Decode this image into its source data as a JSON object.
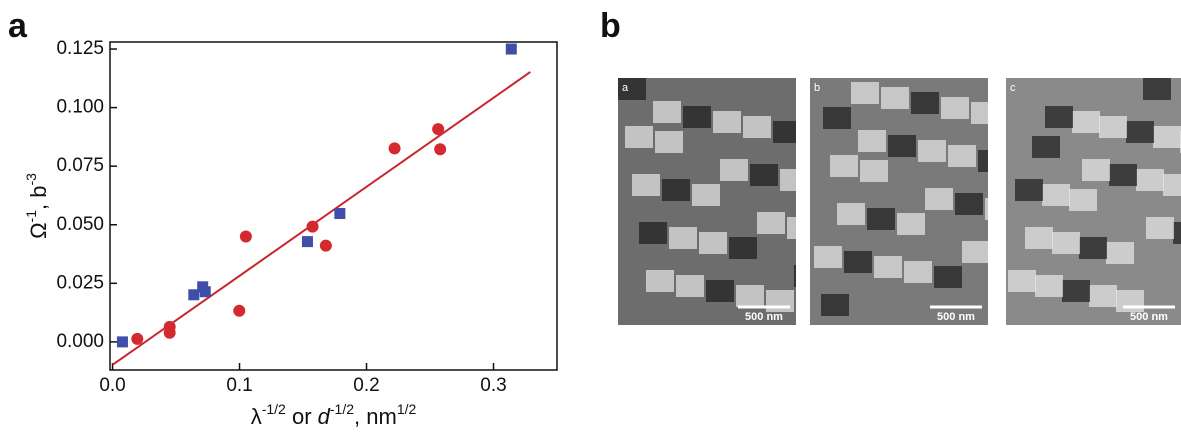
{
  "panel_labels": [
    "a",
    "b"
  ],
  "chart_data": {
    "type": "scatter",
    "x_label": [
      {
        "text": "λ"
      },
      {
        "text": "-1/2",
        "sup": true
      },
      {
        "text": " or "
      },
      {
        "text": "d",
        "italic": true
      },
      {
        "text": "-1/2",
        "sup": true
      },
      {
        "text": ", nm"
      },
      {
        "text": "1/2",
        "sup": true
      }
    ],
    "y_label": [
      {
        "text": "Ω"
      },
      {
        "text": "-1",
        "sup": true
      },
      {
        "text": ", b"
      },
      {
        "text": "-3",
        "sup": true
      }
    ],
    "xlim": [
      -0.002,
      0.35
    ],
    "ylim": [
      -0.012,
      0.128
    ],
    "xticks": [
      {
        "value": 0,
        "label": "0.0"
      },
      {
        "value": 0.1,
        "label": "0.1"
      },
      {
        "value": 0.2,
        "label": "0.2"
      },
      {
        "value": 0.3,
        "label": "0.3"
      }
    ],
    "yticks": [
      {
        "value": 0,
        "label": "0.000"
      },
      {
        "value": 0.025,
        "label": "0.025"
      },
      {
        "value": 0.05,
        "label": "0.050"
      },
      {
        "value": 0.075,
        "label": "0.075"
      },
      {
        "value": 0.1,
        "label": "0.100"
      },
      {
        "value": 0.125,
        "label": "0.125"
      }
    ],
    "series": [
      {
        "marker": "circle",
        "color": "#d42a2f",
        "x": [
          0.0195,
          0.045,
          0.045,
          0.0998,
          0.105,
          0.1575,
          0.168,
          0.2221,
          0.2564,
          0.258
        ],
        "values": [
          0.0013,
          0.0064,
          0.0039,
          0.0133,
          0.045,
          0.0492,
          0.0411,
          0.0826,
          0.0908,
          0.0822
        ]
      },
      {
        "marker": "square",
        "color": "#3f4ea8",
        "x": [
          0.0078,
          0.064,
          0.071,
          0.073,
          0.1535,
          0.179,
          0.314
        ],
        "values": [
          0.0,
          0.0201,
          0.0235,
          0.0214,
          0.0428,
          0.0548,
          0.125
        ]
      }
    ],
    "fit_line": {
      "color": "#c8262c",
      "x": [
        0,
        0.329
      ],
      "values": [
        -0.0098,
        0.1152
      ]
    }
  },
  "micrographs": [
    {
      "label": "a",
      "scale_bar": "500 nm"
    },
    {
      "label": "b",
      "scale_bar": "500 nm"
    },
    {
      "label": "c",
      "scale_bar": "500 nm"
    }
  ]
}
